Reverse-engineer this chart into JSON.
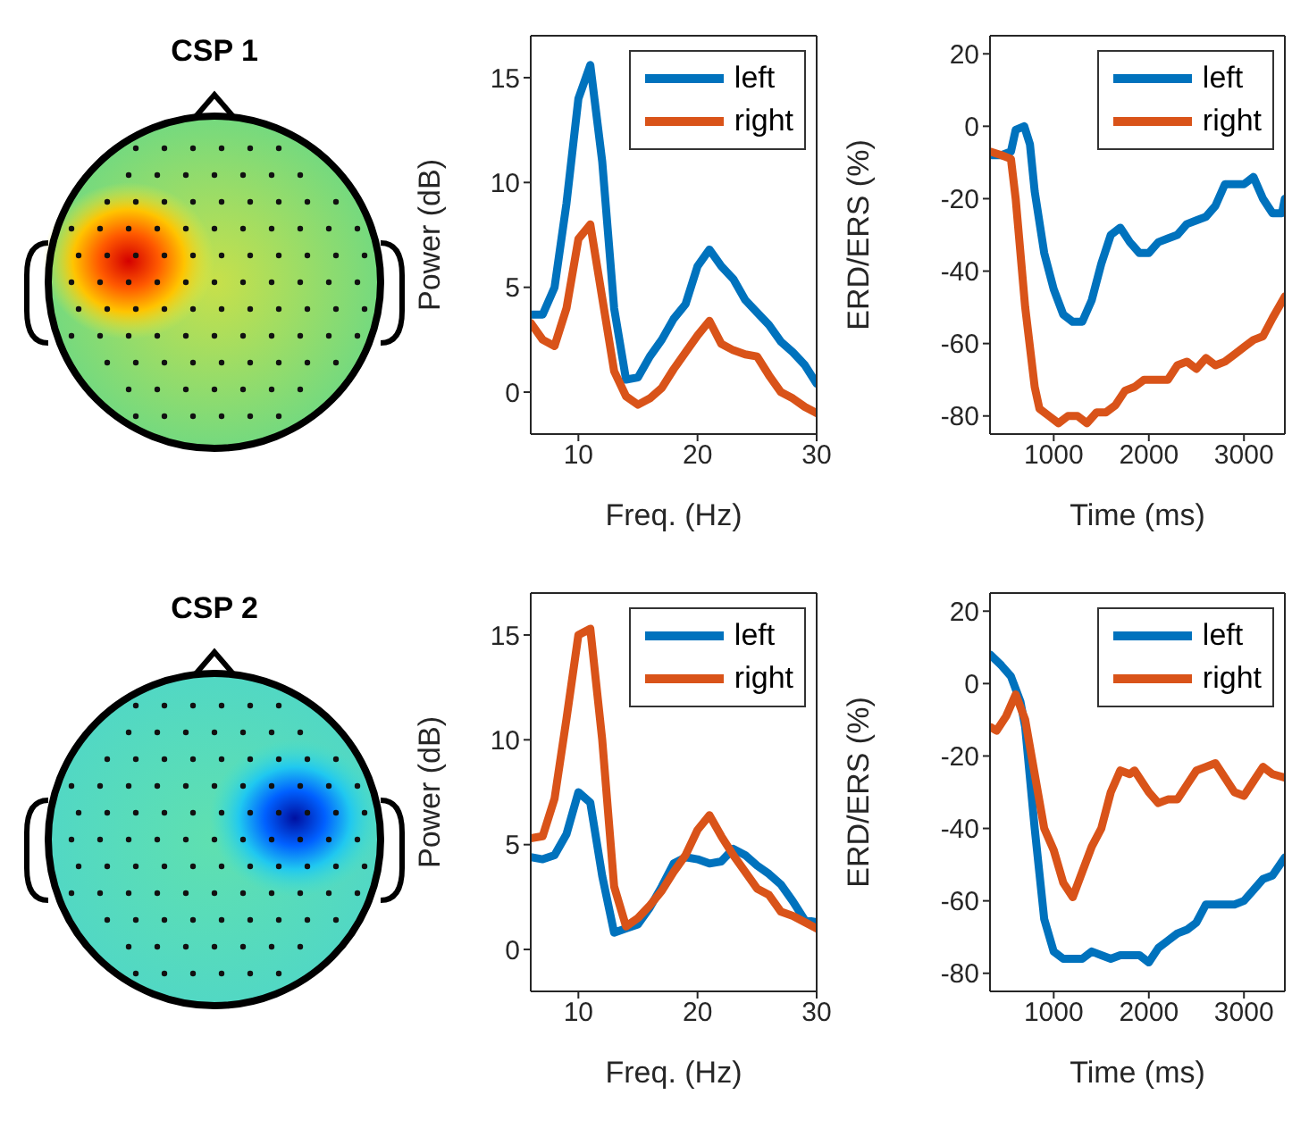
{
  "chart_data": [
    {
      "type": "other",
      "title": "CSP 1"
    },
    {
      "type": "line",
      "xlabel": "Freq. (Hz)",
      "ylabel": "Power (dB)",
      "xlim": [
        6,
        30
      ],
      "xticks": [
        10,
        20,
        30
      ],
      "ylim": [
        -2,
        17
      ],
      "yticks": [
        0,
        5,
        10,
        15
      ],
      "legend": "top right",
      "x": [
        6,
        7,
        8,
        9,
        10,
        11,
        12,
        13,
        14,
        15,
        16,
        17,
        18,
        19,
        20,
        21,
        22,
        23,
        24,
        25,
        26,
        27,
        28,
        29,
        30
      ],
      "series": [
        {
          "name": "left",
          "color": "#0072bd",
          "values": [
            3.7,
            3.7,
            5,
            9,
            14,
            15.6,
            11,
            4,
            0.6,
            0.7,
            1.7,
            2.5,
            3.5,
            4.2,
            6,
            6.8,
            6,
            5.4,
            4.4,
            3.8,
            3.2,
            2.4,
            1.9,
            1.3,
            0.4
          ]
        },
        {
          "name": "right",
          "color": "#d95319",
          "values": [
            3.3,
            2.5,
            2.2,
            4,
            7.3,
            8,
            4.5,
            1,
            -0.2,
            -0.6,
            -0.3,
            0.2,
            1.1,
            1.9,
            2.7,
            3.4,
            2.3,
            2,
            1.8,
            1.7,
            0.8,
            0,
            -0.3,
            -0.7,
            -1
          ]
        }
      ]
    },
    {
      "type": "line",
      "xlabel": "Time (ms)",
      "ylabel": "ERD/ERS (%)",
      "xlim": [
        330,
        3430
      ],
      "xticks": [
        1000,
        2000,
        3000
      ],
      "ylim": [
        -85,
        25
      ],
      "yticks": [
        -80,
        -60,
        -40,
        -20,
        0,
        20
      ],
      "legend": "top right",
      "series": [
        {
          "name": "left",
          "color": "#0072bd",
          "x": [
            333,
            450,
            550,
            600,
            690,
            750,
            800,
            900,
            1000,
            1100,
            1200,
            1300,
            1400,
            1500,
            1600,
            1700,
            1800,
            1900,
            2000,
            2100,
            2200,
            2300,
            2400,
            2500,
            2600,
            2700,
            2800,
            2900,
            3000,
            3100,
            3200,
            3300,
            3400,
            3430
          ],
          "values": [
            -8,
            -8,
            -7,
            -1,
            0,
            -5,
            -18,
            -35,
            -45,
            -52,
            -54,
            -54,
            -48,
            -38,
            -30,
            -28,
            -32,
            -35,
            -35,
            -32,
            -31,
            -30,
            -27,
            -26,
            -25,
            -22,
            -16,
            -16,
            -16,
            -14,
            -20,
            -24,
            -24,
            -20
          ]
        },
        {
          "name": "right",
          "color": "#d95319",
          "x": [
            333,
            450,
            550,
            600,
            700,
            800,
            850,
            950,
            1050,
            1150,
            1250,
            1350,
            1450,
            1550,
            1650,
            1750,
            1850,
            1950,
            2050,
            2200,
            2300,
            2400,
            2500,
            2600,
            2700,
            2800,
            2900,
            3000,
            3100,
            3200,
            3300,
            3430
          ],
          "values": [
            -7,
            -8,
            -9,
            -20,
            -50,
            -72,
            -78,
            -80,
            -82,
            -80,
            -80,
            -82,
            -79,
            -79,
            -77,
            -73,
            -72,
            -70,
            -70,
            -70,
            -66,
            -65,
            -67,
            -64,
            -66,
            -65,
            -63,
            -61,
            -59,
            -58,
            -53,
            -47
          ]
        }
      ]
    },
    {
      "type": "other",
      "title": "CSP 2"
    },
    {
      "type": "line",
      "xlabel": "Freq. (Hz)",
      "ylabel": "Power (dB)",
      "xlim": [
        6,
        30
      ],
      "xticks": [
        10,
        20,
        30
      ],
      "ylim": [
        -2,
        17
      ],
      "yticks": [
        0,
        5,
        10,
        15
      ],
      "legend": "top right",
      "x": [
        6,
        7,
        8,
        9,
        10,
        11,
        12,
        13,
        14,
        15,
        16,
        17,
        18,
        19,
        20,
        21,
        22,
        23,
        24,
        25,
        26,
        27,
        28,
        29,
        30
      ],
      "series": [
        {
          "name": "left",
          "color": "#0072bd",
          "values": [
            4.4,
            4.3,
            4.5,
            5.5,
            7.5,
            7,
            3.5,
            0.8,
            1,
            1.2,
            2,
            3,
            4.1,
            4.4,
            4.3,
            4.1,
            4.2,
            4.8,
            4.5,
            4,
            3.6,
            3.1,
            2.3,
            1.4,
            1.3
          ]
        },
        {
          "name": "right",
          "color": "#d95319",
          "values": [
            5.3,
            5.4,
            7.2,
            11,
            15,
            15.3,
            10,
            3,
            1.1,
            1.5,
            2.1,
            2.8,
            3.7,
            4.5,
            5.7,
            6.4,
            5.4,
            4.5,
            3.7,
            2.9,
            2.6,
            1.8,
            1.6,
            1.3,
            1
          ]
        }
      ]
    },
    {
      "type": "line",
      "xlabel": "Time (ms)",
      "ylabel": "ERD/ERS (%)",
      "xlim": [
        330,
        3430
      ],
      "xticks": [
        1000,
        2000,
        3000
      ],
      "ylim": [
        -85,
        25
      ],
      "yticks": [
        -80,
        -60,
        -40,
        -20,
        0,
        20
      ],
      "legend": "top right",
      "series": [
        {
          "name": "left",
          "color": "#0072bd",
          "x": [
            333,
            450,
            550,
            650,
            700,
            800,
            900,
            1000,
            1100,
            1200,
            1300,
            1400,
            1500,
            1600,
            1700,
            1800,
            1900,
            2000,
            2100,
            2200,
            2300,
            2400,
            2500,
            2600,
            2700,
            2800,
            2900,
            3000,
            3100,
            3200,
            3300,
            3430
          ],
          "values": [
            8,
            5,
            2,
            -5,
            -12,
            -40,
            -65,
            -74,
            -76,
            -76,
            -76,
            -74,
            -75,
            -76,
            -75,
            -75,
            -75,
            -77,
            -73,
            -71,
            -69,
            -68,
            -66,
            -61,
            -61,
            -61,
            -61,
            -60,
            -57,
            -54,
            -53,
            -48
          ]
        },
        {
          "name": "right",
          "color": "#d95319",
          "x": [
            333,
            400,
            500,
            600,
            700,
            800,
            900,
            1000,
            1100,
            1200,
            1300,
            1400,
            1500,
            1600,
            1700,
            1800,
            1850,
            2000,
            2100,
            2200,
            2300,
            2400,
            2500,
            2600,
            2700,
            2800,
            2900,
            3000,
            3100,
            3200,
            3300,
            3430
          ],
          "values": [
            -12,
            -13,
            -9,
            -3,
            -10,
            -25,
            -40,
            -46,
            -55,
            -59,
            -52,
            -45,
            -40,
            -30,
            -24,
            -25,
            -24,
            -30,
            -33,
            -32,
            -32,
            -28,
            -24,
            -23,
            -22,
            -26,
            -30,
            -31,
            -27,
            -23,
            -25,
            -26
          ]
        }
      ]
    }
  ]
}
